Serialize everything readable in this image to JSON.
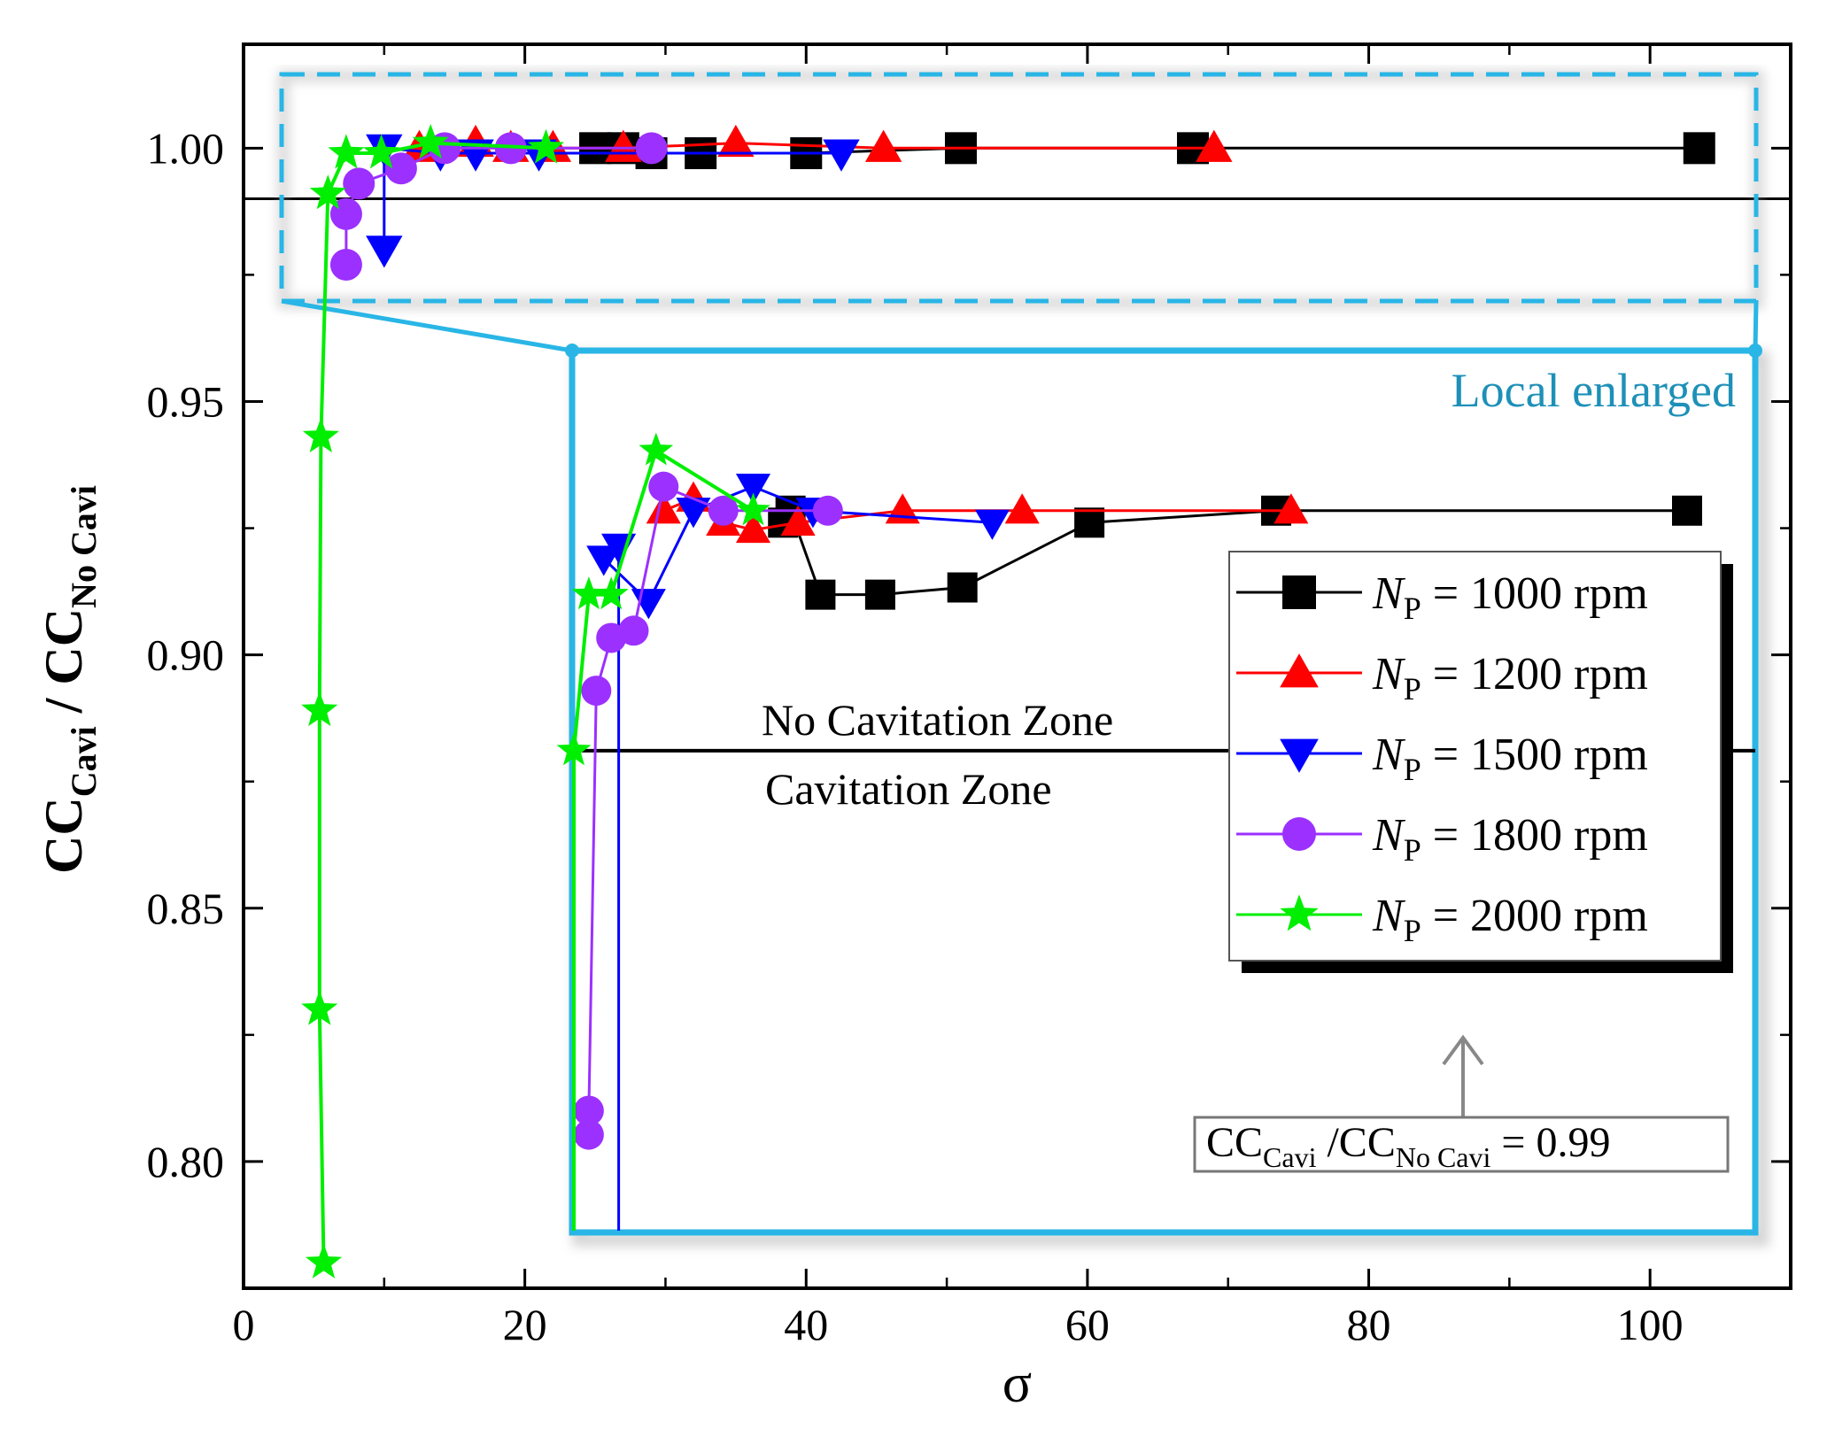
{
  "chart_data": {
    "type": "line",
    "title": "",
    "xlabel": "σ",
    "ylabel": {
      "main": "CC",
      "sub1": "Cavi",
      "mid": " / CC",
      "sub2": "No Cavi"
    },
    "xlim": [
      0,
      110
    ],
    "ylim": [
      0.775,
      1.0205
    ],
    "xticks": [
      "0",
      "20",
      "40",
      "60",
      "80",
      "100"
    ],
    "xtick_values": [
      0,
      20,
      40,
      60,
      80,
      100
    ],
    "yticks": [
      "0.80",
      "0.85",
      "0.90",
      "0.95",
      "1.00"
    ],
    "ytick_values": [
      0.8,
      0.85,
      0.9,
      0.95,
      1.0
    ],
    "threshold": 0.99,
    "legend": {
      "placement": "inside-right",
      "entries": [
        {
          "prefix": "N",
          "sub": "P",
          "text": " = 1000 rpm"
        },
        {
          "prefix": "N",
          "sub": "P",
          "text": " = 1200 rpm"
        },
        {
          "prefix": "N",
          "sub": "P",
          "text": " = 1500 rpm"
        },
        {
          "prefix": "N",
          "sub": "P",
          "text": " = 1800 rpm"
        },
        {
          "prefix": "N",
          "sub": "P",
          "text": " = 2000 rpm"
        }
      ]
    },
    "series": [
      {
        "name": "NP = 1000 rpm",
        "color": "#000000",
        "marker": "square",
        "x": [
          25,
          27,
          29,
          32.5,
          40,
          51,
          67.5,
          103.5
        ],
        "y": [
          1.0,
          1.0,
          0.999,
          0.999,
          0.999,
          1.0,
          1.0,
          1.0
        ]
      },
      {
        "name": "NP = 1200 rpm",
        "color": "#ff0000",
        "marker": "triangle-up",
        "x": [
          12.5,
          16.5,
          19,
          22,
          27,
          35,
          45.5,
          69
        ],
        "y": [
          1.0,
          1.001,
          1.0,
          1.0,
          1.0,
          1.001,
          1.0,
          1.0
        ]
      },
      {
        "name": "NP = 1500 rpm",
        "color": "#0000ff",
        "marker": "triangle-down",
        "x": [
          10,
          10,
          14,
          16.5,
          21,
          42.5
        ],
        "y": [
          0.98,
          1.0,
          0.999,
          0.999,
          0.999,
          0.999
        ]
      },
      {
        "name": "NP = 1800 rpm",
        "color": "#9b30ff",
        "marker": "circle",
        "x": [
          7.3,
          7.3,
          8.2,
          11.2,
          14.3,
          19,
          29
        ],
        "y": [
          0.977,
          0.987,
          0.993,
          0.996,
          1.0,
          1.0,
          1.0
        ]
      },
      {
        "name": "NP = 2000 rpm",
        "color": "#00ee00",
        "marker": "star",
        "x": [
          5.7,
          5.4,
          5.4,
          5.5,
          6.0,
          7.3,
          9.8,
          13.3,
          21.5
        ],
        "y": [
          0.78,
          0.83,
          0.889,
          0.943,
          0.991,
          0.999,
          0.999,
          1.001,
          1.0
        ]
      }
    ],
    "inset": {
      "title": "Local enlarged",
      "xlim": [
        0,
        110
      ],
      "ylim": [
        0.97,
        1.0025
      ],
      "threshold": 0.99,
      "zone_upper": "No Cavitation Zone",
      "zone_lower": "Cavitation Zone",
      "annotation": {
        "main": "CC",
        "sub1": "Cavi",
        "mid": " /CC",
        "sub2": "No Cavi",
        "tail": " = 0.99"
      },
      "series": [
        {
          "name": "NP = 1000 rpm",
          "x": [
            42,
            42.5,
            44.5,
            48.5,
            54,
            62.5,
            75,
            102.5
          ],
          "y": [
            0.9995,
            1.0,
            0.9965,
            0.9965,
            0.9968,
            0.9995,
            1.0,
            1.0
          ]
        },
        {
          "name": "NP = 1200 rpm",
          "x": [
            34,
            36,
            38,
            40,
            43,
            50,
            58,
            76
          ],
          "y": [
            1.0,
            1.0005,
            0.9995,
            0.9992,
            0.9995,
            1.0,
            1.0,
            1.0
          ]
        },
        {
          "name": "NP = 1500 rpm",
          "x": [
            31,
            31,
            30,
            33,
            36,
            40,
            44,
            56
          ],
          "y": [
            0.97,
            0.9985,
            0.998,
            0.9962,
            1.0,
            1.001,
            1.0,
            0.9995
          ]
        },
        {
          "name": "NP = 1800 rpm",
          "x": [
            29,
            29,
            29.5,
            30.5,
            32,
            34,
            38,
            45
          ],
          "y": [
            0.974,
            0.975,
            0.9925,
            0.9947,
            0.995,
            1.001,
            1.0,
            1.0
          ]
        },
        {
          "name": "NP = 2000 rpm",
          "x": [
            28,
            28,
            29,
            30.5,
            33.5,
            40
          ],
          "y": [
            0.97,
            0.99,
            0.9965,
            0.9965,
            1.0025,
            1.0
          ]
        }
      ]
    }
  }
}
